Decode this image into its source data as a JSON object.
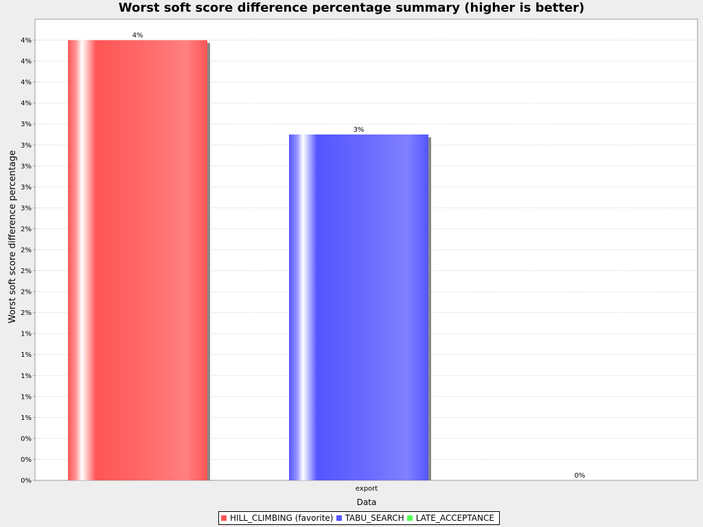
{
  "chart_data": {
    "type": "bar",
    "title": "Worst soft score difference percentage summary (higher is better)",
    "xlabel": "Data",
    "ylabel": "Worst soft soft score difference percentage",
    "categories": [
      "export"
    ],
    "series": [
      {
        "name": "HILL_CLIMBING (favorite)",
        "values": [
          4.2
        ],
        "label": "4%",
        "color": "#ff5555"
      },
      {
        "name": "TABU_SEARCH",
        "values": [
          3.3
        ],
        "label": "3%",
        "color": "#5555ff"
      },
      {
        "name": "LATE_ACCEPTANCE",
        "values": [
          0
        ],
        "label": "0%",
        "color": "#55ff55"
      }
    ],
    "ylim": [
      0,
      4.4
    ],
    "yticks": [
      {
        "value": 0.0,
        "label": "0%"
      },
      {
        "value": 0.2,
        "label": "0%"
      },
      {
        "value": 0.4,
        "label": "0%"
      },
      {
        "value": 0.6,
        "label": "1%"
      },
      {
        "value": 0.8,
        "label": "1%"
      },
      {
        "value": 1.0,
        "label": "1%"
      },
      {
        "value": 1.2,
        "label": "1%"
      },
      {
        "value": 1.4,
        "label": "1%"
      },
      {
        "value": 1.6,
        "label": "2%"
      },
      {
        "value": 1.8,
        "label": "2%"
      },
      {
        "value": 2.0,
        "label": "2%"
      },
      {
        "value": 2.2,
        "label": "2%"
      },
      {
        "value": 2.4,
        "label": "2%"
      },
      {
        "value": 2.6,
        "label": "3%"
      },
      {
        "value": 2.8,
        "label": "3%"
      },
      {
        "value": 3.0,
        "label": "3%"
      },
      {
        "value": 3.2,
        "label": "3%"
      },
      {
        "value": 3.4,
        "label": "3%"
      },
      {
        "value": 3.6,
        "label": "4%"
      },
      {
        "value": 3.8,
        "label": "4%"
      },
      {
        "value": 4.0,
        "label": "4%"
      },
      {
        "value": 4.2,
        "label": "4%"
      }
    ],
    "grid": true,
    "legend_position": "bottom"
  }
}
